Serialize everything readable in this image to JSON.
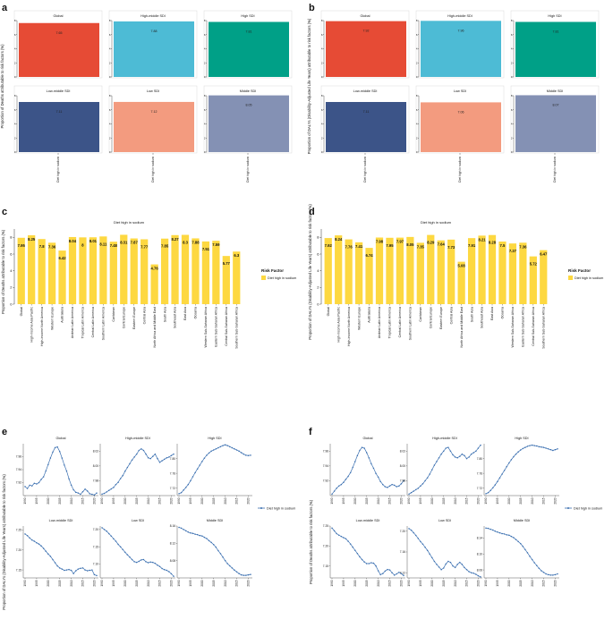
{
  "figure": {
    "panel_letters": [
      "a",
      "b",
      "c",
      "d",
      "e",
      "f"
    ],
    "colors": {
      "Global": "#E64B35",
      "High-middle SDI": "#4DBBD5",
      "High SDI": "#00A087",
      "Low-middle SDI": "#3C5488",
      "Low SDI": "#F39B7F",
      "Middle SDI": "#8491B4",
      "bar": "#FDD841",
      "line": "#3A6FB0",
      "axis": "#333333"
    }
  },
  "chart_data": [
    {
      "panel": "a",
      "type": "bar",
      "ylabel": "Proportion of Deaths attributable to risk factors (%)",
      "xlabel": "Diet high in sodium",
      "ylim": [
        0,
        8
      ],
      "yticks": [
        0,
        2,
        4,
        6,
        8
      ],
      "facets": [
        {
          "title": "Global",
          "value": 7.65,
          "label": "7.65"
        },
        {
          "title": "High-middle SDI",
          "value": 7.88,
          "label": "7.88"
        },
        {
          "title": "High SDI",
          "value": 7.81,
          "label": "7.81"
        },
        {
          "title": "Low-middle SDI",
          "value": 7.11,
          "label": "7.11"
        },
        {
          "title": "Low SDI",
          "value": 7.12,
          "label": "7.12"
        },
        {
          "title": "Middle SDI",
          "value": 8.05,
          "label": "8.05"
        }
      ]
    },
    {
      "panel": "b",
      "type": "bar",
      "ylabel": "Proportion of DALYs (Disability-Adjusted Life Years) attributable to risk factors (%)",
      "xlabel": "Diet high in sodium",
      "ylim": [
        0,
        8
      ],
      "yticks": [
        0,
        2,
        4,
        6,
        8
      ],
      "facets": [
        {
          "title": "Global",
          "value": 7.92,
          "label": "7.92"
        },
        {
          "title": "High-middle SDI",
          "value": 7.96,
          "label": "7.96"
        },
        {
          "title": "High SDI",
          "value": 7.81,
          "label": "7.81"
        },
        {
          "title": "Low-middle SDI",
          "value": 7.11,
          "label": "7.11"
        },
        {
          "title": "Low SDI",
          "value": 7.06,
          "label": "7.06"
        },
        {
          "title": "Middle SDI",
          "value": 8.07,
          "label": "8.07"
        }
      ]
    },
    {
      "panel": "c",
      "type": "bar",
      "title": "Diet high in sodium",
      "ylabel": "Proportion of Deaths attributable to risk factors (%)",
      "ylim": [
        0,
        9
      ],
      "yticks": [
        0,
        2,
        4,
        6,
        8
      ],
      "legend_title": "Risk Factor",
      "legend_item": "Diet high in sodium",
      "categories": [
        "Global",
        "High-income Asia Pacific",
        "High-income North America",
        "Western Europe",
        "Australasia",
        "Andean Latin America",
        "Tropical Latin America",
        "Central Latin America",
        "Southern Latin America",
        "Caribbean",
        "Central Europe",
        "Eastern Europe",
        "Central Asia",
        "North Africa and Middle East",
        "South Asia",
        "Southeast Asia",
        "East Asia",
        "Oceania",
        "Western Sub-Saharan Africa",
        "Eastern Sub-Saharan Africa",
        "Central Sub-Saharan Africa",
        "Southern Sub-Saharan Africa"
      ],
      "values": [
        7.95,
        8.25,
        7.8,
        7.36,
        6.42,
        8.04,
        8.0,
        8.01,
        8.11,
        7.48,
        8.31,
        7.87,
        7.77,
        4.76,
        7.85,
        8.27,
        8.3,
        7.88,
        7.51,
        7.59,
        5.77,
        6.3
      ],
      "labels": [
        "7.95",
        "8.25",
        "7.8",
        "7.36",
        "6.42",
        "8.04",
        "8",
        "8.01",
        "8.11",
        "7.48",
        "8.31",
        "7.87",
        "7.77",
        "4.76",
        "7.85",
        "8.27",
        "8.3",
        "7.88",
        "7.51",
        "7.59",
        "5.77",
        "6.3"
      ]
    },
    {
      "panel": "d",
      "type": "bar",
      "title": "Diet high in sodium",
      "ylabel": "Proportion of DALYs (Disability-Adjusted Life Years) attributable to risk factors (%)",
      "ylim": [
        0,
        9
      ],
      "yticks": [
        0,
        2,
        4,
        6,
        8
      ],
      "legend_title": "Risk Factor",
      "legend_item": "Diet high in sodium",
      "categories": [
        "Global",
        "High-income Asia Pacific",
        "High-income North America",
        "Western Europe",
        "Australasia",
        "Andean Latin America",
        "Tropical Latin America",
        "Central Latin America",
        "Southern Latin America",
        "Caribbean",
        "Central Europe",
        "Eastern Europe",
        "Central Asia",
        "North Africa and Middle East",
        "South Asia",
        "Southeast Asia",
        "East Asia",
        "Oceania",
        "Western Sub-Saharan Africa",
        "Eastern Sub-Saharan Africa",
        "Central Sub-Saharan Africa",
        "Southern Sub-Saharan Africa"
      ],
      "values": [
        7.92,
        8.24,
        7.76,
        7.41,
        6.74,
        7.98,
        7.95,
        7.97,
        8.05,
        7.35,
        8.29,
        7.64,
        7.73,
        5.08,
        7.91,
        8.21,
        8.28,
        7.5,
        7.27,
        7.36,
        5.72,
        6.47
      ],
      "labels": [
        "7.92",
        "8.24",
        "7.76",
        "7.41",
        "6.74",
        "7.98",
        "7.95",
        "7.97",
        "8.05",
        "7.35",
        "8.29",
        "7.64",
        "7.73",
        "5.08",
        "7.91",
        "8.21",
        "8.28",
        "7.5",
        "7.27",
        "7.36",
        "5.72",
        "6.47"
      ]
    },
    {
      "panel": "e",
      "type": "line",
      "ylabel": "Proportion of DALYs (Disability-Adjusted Life Years) attributable to risk factors (%)",
      "legend_item": "Diet high in sodium",
      "x": [
        1990,
        1991,
        1992,
        1993,
        1994,
        1995,
        1996,
        1997,
        1998,
        1999,
        2000,
        2001,
        2002,
        2003,
        2004,
        2005,
        2006,
        2007,
        2008,
        2009,
        2010,
        2011,
        2012,
        2013,
        2014,
        2015,
        2016,
        2017,
        2018,
        2019,
        2020,
        2021
      ],
      "xticks": [
        "1990",
        "1995",
        "2000",
        "2005",
        "2010",
        "2015",
        "2020"
      ],
      "facets": [
        {
          "title": "Global",
          "ylim": [
            7.9,
            7.98
          ],
          "yticks": [
            "7.92",
            "7.94",
            "7.96"
          ],
          "values": [
            7.914,
            7.911,
            7.916,
            7.915,
            7.919,
            7.918,
            7.92,
            7.925,
            7.929,
            7.938,
            7.948,
            7.958,
            7.967,
            7.974,
            7.975,
            7.968,
            7.958,
            7.947,
            7.938,
            7.926,
            7.916,
            7.909,
            7.905,
            7.904,
            7.902,
            7.906,
            7.91,
            7.907,
            7.903,
            7.902,
            7.901,
            7.904
          ]
        },
        {
          "title": "High-middle SDI",
          "ylim": [
            7.96,
            8.03
          ],
          "yticks": [
            "7.98",
            "8.00",
            "8.02"
          ],
          "values": [
            7.962,
            7.963,
            7.965,
            7.967,
            7.969,
            7.971,
            7.975,
            7.978,
            7.983,
            7.987,
            7.993,
            7.998,
            8.003,
            8.008,
            8.012,
            8.016,
            8.021,
            8.023,
            8.021,
            8.016,
            8.011,
            8.01,
            8.013,
            8.016,
            8.01,
            8.005,
            8.007,
            8.009,
            8.011,
            8.012,
            8.014,
            8.016
          ]
        },
        {
          "title": "High SDI",
          "ylim": [
            7.7,
            7.84
          ],
          "yticks": [
            "7.72",
            "7.76",
            "7.80"
          ],
          "values": [
            7.705,
            7.708,
            7.715,
            7.722,
            7.73,
            7.74,
            7.751,
            7.762,
            7.772,
            7.782,
            7.792,
            7.801,
            7.809,
            7.815,
            7.82,
            7.823,
            7.826,
            7.829,
            7.832,
            7.835,
            7.837,
            7.835,
            7.832,
            7.829,
            7.826,
            7.823,
            7.82,
            7.816,
            7.812,
            7.809,
            7.808,
            7.809
          ]
        },
        {
          "title": "Low-middle SDI",
          "ylim": [
            7.13,
            7.26
          ],
          "yticks": [
            "7.15",
            "7.20",
            "7.25"
          ],
          "values": [
            7.24,
            7.236,
            7.23,
            7.225,
            7.222,
            7.218,
            7.215,
            7.21,
            7.204,
            7.197,
            7.19,
            7.184,
            7.176,
            7.168,
            7.16,
            7.155,
            7.152,
            7.149,
            7.15,
            7.151,
            7.149,
            7.141,
            7.148,
            7.152,
            7.154,
            7.155,
            7.15,
            7.148,
            7.149,
            7.15,
            7.138,
            7.136
          ]
        },
        {
          "title": "Low SDI",
          "ylim": [
            7.06,
            7.21
          ],
          "yticks": [
            "7.10",
            "7.15",
            "7.20"
          ],
          "values": [
            7.205,
            7.2,
            7.195,
            7.188,
            7.181,
            7.173,
            7.166,
            7.157,
            7.15,
            7.142,
            7.134,
            7.127,
            7.12,
            7.113,
            7.107,
            7.105,
            7.108,
            7.112,
            7.113,
            7.107,
            7.104,
            7.106,
            7.105,
            7.102,
            7.097,
            7.093,
            7.087,
            7.084,
            7.082,
            7.078,
            7.072,
            7.065
          ]
        },
        {
          "title": "Middle SDI",
          "ylim": [
            8.04,
            8.16
          ],
          "yticks": [
            "8.08",
            "8.12",
            "8.16"
          ],
          "values": [
            8.157,
            8.155,
            8.152,
            8.149,
            8.146,
            8.144,
            8.143,
            8.141,
            8.14,
            8.138,
            8.137,
            8.134,
            8.131,
            8.126,
            8.122,
            8.117,
            8.111,
            8.103,
            8.096,
            8.088,
            8.08,
            8.073,
            8.068,
            8.063,
            8.058,
            8.054,
            8.05,
            8.047,
            8.046,
            8.046,
            8.047,
            8.048
          ]
        }
      ]
    },
    {
      "panel": "f",
      "type": "line",
      "ylabel": "Proportion of Deaths attributable to risk factors (%)",
      "legend_item": "Diet high in sodium",
      "x": [
        1990,
        1991,
        1992,
        1993,
        1994,
        1995,
        1996,
        1997,
        1998,
        1999,
        2000,
        2001,
        2002,
        2003,
        2004,
        2005,
        2006,
        2007,
        2008,
        2009,
        2010,
        2011,
        2012,
        2013,
        2014,
        2015,
        2016,
        2017,
        2018,
        2019,
        2020,
        2021
      ],
      "xticks": [
        "1990",
        "1995",
        "2000",
        "2005",
        "2010",
        "2015",
        "2020"
      ],
      "facets": [
        {
          "title": "Global",
          "ylim": [
            7.9,
            7.97
          ],
          "yticks": [
            "7.92",
            "7.94",
            "7.96"
          ],
          "values": [
            7.902,
            7.906,
            7.91,
            7.913,
            7.915,
            7.918,
            7.922,
            7.926,
            7.931,
            7.938,
            7.946,
            7.954,
            7.961,
            7.965,
            7.964,
            7.958,
            7.951,
            7.943,
            7.937,
            7.93,
            7.925,
            7.919,
            7.915,
            7.912,
            7.911,
            7.913,
            7.915,
            7.914,
            7.912,
            7.913,
            7.916,
            7.92
          ]
        },
        {
          "title": "High-middle SDI",
          "ylim": [
            7.96,
            8.03
          ],
          "yticks": [
            "7.98",
            "8.00",
            "8.02"
          ],
          "values": [
            7.962,
            7.964,
            7.966,
            7.968,
            7.97,
            7.973,
            7.976,
            7.98,
            7.984,
            7.989,
            7.995,
            8.001,
            8.006,
            8.011,
            8.016,
            8.02,
            8.024,
            8.025,
            8.02,
            8.015,
            8.012,
            8.011,
            8.013,
            8.016,
            8.014,
            8.01,
            8.012,
            8.016,
            8.018,
            8.02,
            8.024,
            8.028
          ]
        },
        {
          "title": "High SDI",
          "ylim": [
            7.7,
            7.84
          ],
          "yticks": [
            "7.72",
            "7.76",
            "7.80"
          ],
          "values": [
            7.705,
            7.708,
            7.714,
            7.721,
            7.729,
            7.738,
            7.748,
            7.758,
            7.768,
            7.778,
            7.788,
            7.797,
            7.805,
            7.812,
            7.818,
            7.823,
            7.827,
            7.83,
            7.833,
            7.835,
            7.836,
            7.835,
            7.834,
            7.832,
            7.831,
            7.83,
            7.828,
            7.826,
            7.824,
            7.822,
            7.824,
            7.826
          ]
        },
        {
          "title": "Low-middle SDI",
          "ylim": [
            7.12,
            7.25
          ],
          "yticks": [
            "7.15",
            "7.20",
            "7.25"
          ],
          "values": [
            7.245,
            7.238,
            7.231,
            7.227,
            7.224,
            7.221,
            7.218,
            7.212,
            7.205,
            7.197,
            7.189,
            7.181,
            7.173,
            7.166,
            7.16,
            7.156,
            7.156,
            7.158,
            7.157,
            7.15,
            7.138,
            7.128,
            7.131,
            7.137,
            7.141,
            7.14,
            7.133,
            7.127,
            7.13,
            7.134,
            7.131,
            7.126
          ]
        },
        {
          "title": "Low SDI",
          "ylim": [
            7.11,
            7.21
          ],
          "yticks": [
            "7.12",
            "7.16",
            "7.20"
          ],
          "values": [
            7.205,
            7.202,
            7.197,
            7.192,
            7.186,
            7.18,
            7.175,
            7.169,
            7.163,
            7.156,
            7.149,
            7.142,
            7.136,
            7.131,
            7.126,
            7.129,
            7.137,
            7.142,
            7.14,
            7.133,
            7.13,
            7.136,
            7.14,
            7.136,
            7.13,
            7.126,
            7.122,
            7.12,
            7.119,
            7.117,
            7.114,
            7.112
          ]
        },
        {
          "title": "Middle SDI",
          "ylim": [
            8.04,
            8.17
          ],
          "yticks": [
            "8.06",
            "8.10",
            "8.14"
          ],
          "values": [
            8.165,
            8.164,
            8.162,
            8.16,
            8.157,
            8.155,
            8.153,
            8.151,
            8.15,
            8.148,
            8.147,
            8.144,
            8.141,
            8.136,
            8.131,
            8.126,
            8.119,
            8.111,
            8.103,
            8.094,
            8.086,
            8.078,
            8.071,
            8.064,
            8.058,
            8.054,
            8.05,
            8.048,
            8.047,
            8.047,
            8.048,
            8.05
          ]
        }
      ]
    }
  ]
}
